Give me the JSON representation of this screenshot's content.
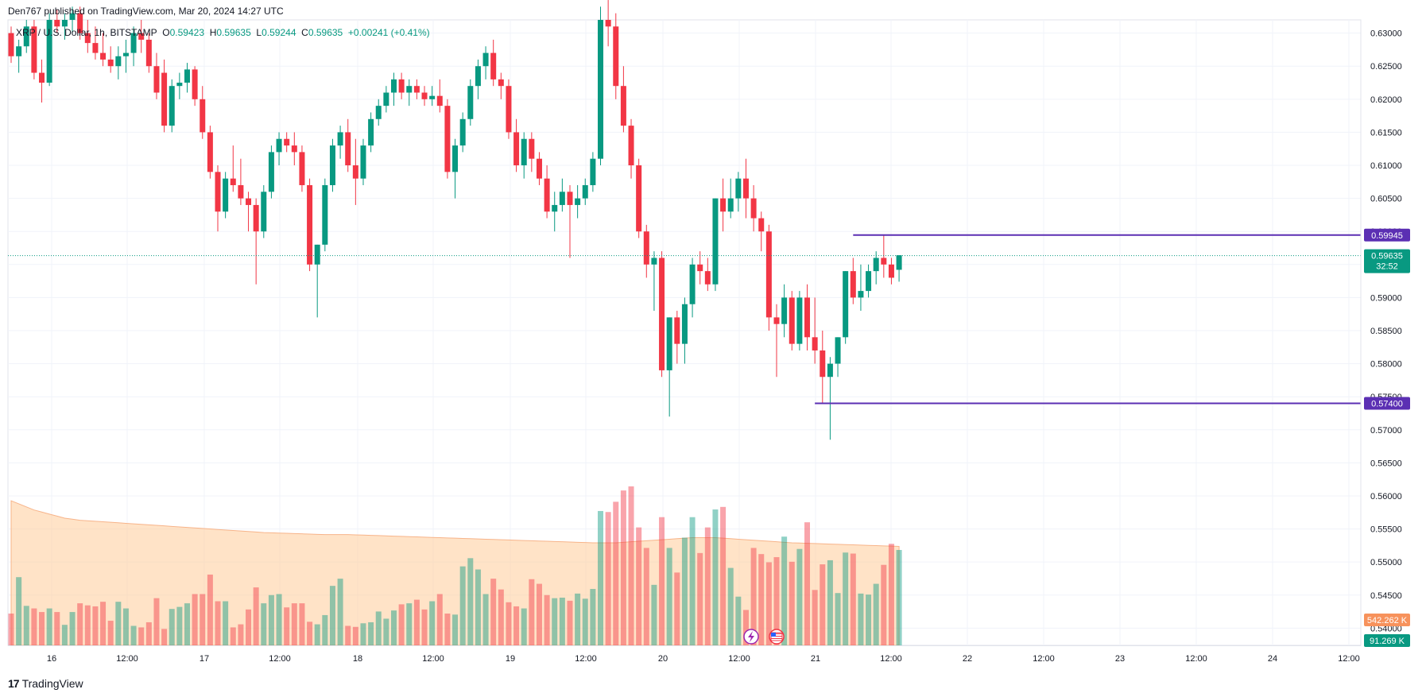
{
  "header": {
    "published": "Den767 published on TradingView.com, Mar 20, 2024 14:27 UTC"
  },
  "symbol": {
    "name": "XRP / U.S. Dollar, 1h, BITSTAMP",
    "open_label": "O",
    "open": "0.59423",
    "high_label": "H",
    "high": "0.59635",
    "low_label": "L",
    "low": "0.59244",
    "close_label": "C",
    "close": "0.59635",
    "change": "+0.00241 (+0.41%)"
  },
  "footer": {
    "brand": "TradingView"
  },
  "colors": {
    "up": "#089981",
    "down": "#f23645",
    "line": "#5b2fb3",
    "volume_ma": "#ffcc99",
    "badge_vol": "#f7925c"
  },
  "chart_data": {
    "type": "candlestick",
    "y_axis": {
      "ticks": [
        "0.63000",
        "0.62500",
        "0.62000",
        "0.61500",
        "0.61000",
        "0.60500",
        "0.60000",
        "0.59500",
        "0.59000",
        "0.58500",
        "0.58000",
        "0.57500",
        "0.57000",
        "0.56500",
        "0.56000",
        "0.55500",
        "0.55000",
        "0.54500",
        "0.54000"
      ],
      "range": [
        0.5374,
        0.632
      ]
    },
    "x_axis": {
      "ticks": [
        "16",
        "12:00",
        "17",
        "12:00",
        "18",
        "12:00",
        "19",
        "12:00",
        "20",
        "12:00",
        "21",
        "12:00",
        "22",
        "12:00",
        "23",
        "12:00",
        "24",
        "12:00"
      ],
      "bar_interval": "1h",
      "visible_bars": 117
    },
    "horizontal_lines": [
      {
        "value": 0.59945,
        "label": "0.59945"
      },
      {
        "value": 0.574,
        "label": "0.57400"
      }
    ],
    "last_price": {
      "value": 0.59635,
      "label": "0.59635",
      "countdown": "32:52"
    },
    "volume": {
      "ma_label": "542.262 K",
      "last_label": "91.269 K"
    },
    "candles": [
      [
        0.63,
        0.631,
        0.6255,
        0.6265
      ],
      [
        0.6265,
        0.629,
        0.624,
        0.628
      ],
      [
        0.628,
        0.632,
        0.627,
        0.631
      ],
      [
        0.631,
        0.632,
        0.623,
        0.624
      ],
      [
        0.624,
        0.626,
        0.6195,
        0.6225
      ],
      [
        0.6225,
        0.633,
        0.622,
        0.632
      ],
      [
        0.632,
        0.6335,
        0.63,
        0.631
      ],
      [
        0.631,
        0.633,
        0.629,
        0.632
      ],
      [
        0.632,
        0.634,
        0.63,
        0.633
      ],
      [
        0.633,
        0.634,
        0.629,
        0.63
      ],
      [
        0.63,
        0.632,
        0.627,
        0.6285
      ],
      [
        0.6285,
        0.631,
        0.626,
        0.627
      ],
      [
        0.627,
        0.63,
        0.625,
        0.626
      ],
      [
        0.626,
        0.628,
        0.624,
        0.625
      ],
      [
        0.625,
        0.628,
        0.623,
        0.6265
      ],
      [
        0.6265,
        0.629,
        0.624,
        0.627
      ],
      [
        0.627,
        0.631,
        0.625,
        0.63
      ],
      [
        0.63,
        0.632,
        0.627,
        0.629
      ],
      [
        0.629,
        0.63,
        0.624,
        0.625
      ],
      [
        0.625,
        0.627,
        0.62,
        0.621
      ],
      [
        0.624,
        0.626,
        0.615,
        0.616
      ],
      [
        0.616,
        0.623,
        0.615,
        0.622
      ],
      [
        0.622,
        0.624,
        0.62,
        0.6225
      ],
      [
        0.6225,
        0.6255,
        0.621,
        0.6245
      ],
      [
        0.6245,
        0.625,
        0.619,
        0.62
      ],
      [
        0.62,
        0.622,
        0.614,
        0.615
      ],
      [
        0.615,
        0.616,
        0.608,
        0.609
      ],
      [
        0.609,
        0.61,
        0.6,
        0.603
      ],
      [
        0.603,
        0.609,
        0.602,
        0.608
      ],
      [
        0.608,
        0.613,
        0.606,
        0.607
      ],
      [
        0.607,
        0.611,
        0.604,
        0.605
      ],
      [
        0.605,
        0.606,
        0.6,
        0.604
      ],
      [
        0.604,
        0.605,
        0.592,
        0.6
      ],
      [
        0.6,
        0.607,
        0.599,
        0.606
      ],
      [
        0.606,
        0.613,
        0.605,
        0.612
      ],
      [
        0.612,
        0.615,
        0.61,
        0.614
      ],
      [
        0.614,
        0.615,
        0.612,
        0.613
      ],
      [
        0.613,
        0.615,
        0.61,
        0.612
      ],
      [
        0.612,
        0.613,
        0.606,
        0.607
      ],
      [
        0.607,
        0.608,
        0.594,
        0.595
      ],
      [
        0.595,
        0.598,
        0.587,
        0.598
      ],
      [
        0.598,
        0.608,
        0.597,
        0.607
      ],
      [
        0.607,
        0.614,
        0.606,
        0.613
      ],
      [
        0.613,
        0.616,
        0.611,
        0.615
      ],
      [
        0.615,
        0.617,
        0.609,
        0.61
      ],
      [
        0.61,
        0.614,
        0.604,
        0.608
      ],
      [
        0.608,
        0.614,
        0.607,
        0.613
      ],
      [
        0.613,
        0.618,
        0.612,
        0.617
      ],
      [
        0.617,
        0.62,
        0.616,
        0.619
      ],
      [
        0.619,
        0.622,
        0.618,
        0.621
      ],
      [
        0.621,
        0.624,
        0.619,
        0.623
      ],
      [
        0.623,
        0.624,
        0.62,
        0.621
      ],
      [
        0.621,
        0.623,
        0.619,
        0.622
      ],
      [
        0.622,
        0.623,
        0.62,
        0.621
      ],
      [
        0.621,
        0.622,
        0.619,
        0.62
      ],
      [
        0.62,
        0.622,
        0.619,
        0.6205
      ],
      [
        0.6205,
        0.623,
        0.618,
        0.619
      ],
      [
        0.619,
        0.62,
        0.608,
        0.609
      ],
      [
        0.609,
        0.614,
        0.605,
        0.613
      ],
      [
        0.613,
        0.618,
        0.612,
        0.617
      ],
      [
        0.617,
        0.623,
        0.616,
        0.622
      ],
      [
        0.622,
        0.626,
        0.62,
        0.625
      ],
      [
        0.625,
        0.628,
        0.623,
        0.627
      ],
      [
        0.627,
        0.629,
        0.622,
        0.623
      ],
      [
        0.623,
        0.624,
        0.62,
        0.622
      ],
      [
        0.622,
        0.623,
        0.614,
        0.615
      ],
      [
        0.615,
        0.617,
        0.609,
        0.61
      ],
      [
        0.61,
        0.615,
        0.608,
        0.614
      ],
      [
        0.614,
        0.615,
        0.609,
        0.611
      ],
      [
        0.611,
        0.612,
        0.607,
        0.608
      ],
      [
        0.608,
        0.61,
        0.602,
        0.603
      ],
      [
        0.603,
        0.606,
        0.6,
        0.604
      ],
      [
        0.604,
        0.608,
        0.603,
        0.606
      ],
      [
        0.606,
        0.607,
        0.596,
        0.604
      ],
      [
        0.604,
        0.607,
        0.602,
        0.605
      ],
      [
        0.605,
        0.608,
        0.604,
        0.607
      ],
      [
        0.607,
        0.612,
        0.606,
        0.611
      ],
      [
        0.611,
        0.634,
        0.61,
        0.632
      ],
      [
        0.632,
        0.635,
        0.628,
        0.631
      ],
      [
        0.631,
        0.633,
        0.62,
        0.622
      ],
      [
        0.622,
        0.625,
        0.615,
        0.616
      ],
      [
        0.616,
        0.617,
        0.608,
        0.61
      ],
      [
        0.61,
        0.611,
        0.599,
        0.6
      ],
      [
        0.6,
        0.601,
        0.593,
        0.595
      ],
      [
        0.595,
        0.597,
        0.588,
        0.596
      ],
      [
        0.596,
        0.597,
        0.578,
        0.579
      ],
      [
        0.579,
        0.587,
        0.572,
        0.587
      ],
      [
        0.587,
        0.588,
        0.58,
        0.583
      ],
      [
        0.583,
        0.59,
        0.58,
        0.589
      ],
      [
        0.589,
        0.596,
        0.587,
        0.595
      ],
      [
        0.595,
        0.597,
        0.592,
        0.594
      ],
      [
        0.594,
        0.596,
        0.591,
        0.592
      ],
      [
        0.592,
        0.605,
        0.591,
        0.605
      ],
      [
        0.605,
        0.608,
        0.6,
        0.603
      ],
      [
        0.603,
        0.608,
        0.602,
        0.605
      ],
      [
        0.605,
        0.609,
        0.603,
        0.608
      ],
      [
        0.608,
        0.611,
        0.602,
        0.605
      ],
      [
        0.605,
        0.607,
        0.6,
        0.602
      ],
      [
        0.602,
        0.603,
        0.597,
        0.6
      ],
      [
        0.6,
        0.601,
        0.585,
        0.587
      ],
      [
        0.587,
        0.589,
        0.578,
        0.586
      ],
      [
        0.586,
        0.592,
        0.584,
        0.59
      ],
      [
        0.59,
        0.591,
        0.582,
        0.583
      ],
      [
        0.583,
        0.591,
        0.582,
        0.59
      ],
      [
        0.59,
        0.592,
        0.582,
        0.584
      ],
      [
        0.584,
        0.59,
        0.58,
        0.582
      ],
      [
        0.582,
        0.585,
        0.574,
        0.578
      ],
      [
        0.578,
        0.581,
        0.5685,
        0.58
      ],
      [
        0.58,
        0.584,
        0.578,
        0.584
      ],
      [
        0.584,
        0.594,
        0.583,
        0.594
      ],
      [
        0.594,
        0.596,
        0.589,
        0.59
      ],
      [
        0.59,
        0.595,
        0.588,
        0.591
      ],
      [
        0.591,
        0.595,
        0.59,
        0.594
      ],
      [
        0.594,
        0.597,
        0.592,
        0.596
      ],
      [
        0.596,
        0.5995,
        0.593,
        0.595
      ],
      [
        0.595,
        0.596,
        0.592,
        0.593
      ],
      [
        0.5942,
        0.5964,
        0.5924,
        0.5964
      ]
    ],
    "volumes": [
      620,
      1330,
      770,
      720,
      650,
      720,
      650,
      400,
      650,
      820,
      780,
      760,
      850,
      480,
      850,
      720,
      380,
      350,
      450,
      920,
      320,
      710,
      750,
      820,
      1000,
      1000,
      1380,
      860,
      860,
      350,
      410,
      700,
      1130,
      820,
      980,
      1000,
      740,
      820,
      820,
      460,
      410,
      590,
      1160,
      1300,
      380,
      360,
      430,
      450,
      660,
      520,
      680,
      800,
      820,
      890,
      700,
      860,
      1000,
      620,
      600,
      1540,
      1700,
      1480,
      1000,
      1300,
      1090,
      840,
      760,
      720,
      1290,
      1200,
      980,
      920,
      930,
      870,
      1010,
      910,
      1100,
      2620,
      2600,
      2800,
      3020,
      3100,
      2300,
      1900,
      1180,
      2500,
      1900,
      1420,
      2100,
      2500,
      1800,
      2300,
      2650,
      2700,
      1510,
      950,
      690,
      1900,
      1780,
      1620,
      1720,
      2120,
      1630,
      1880,
      2400,
      1080,
      1580,
      1660,
      1020,
      1810,
      1790,
      1010,
      990,
      1200,
      1570,
      1980,
      1860
    ],
    "volume_ma": [
      2820,
      2760,
      2700,
      2640,
      2600,
      2560,
      2520,
      2480,
      2460,
      2440,
      2430,
      2420,
      2410,
      2400,
      2390,
      2380,
      2370,
      2360,
      2350,
      2340,
      2330,
      2320,
      2310,
      2300,
      2290,
      2280,
      2270,
      2260,
      2250,
      2240,
      2230,
      2220,
      2210,
      2200,
      2195,
      2190,
      2185,
      2180,
      2175,
      2170,
      2165,
      2160,
      2160,
      2160,
      2160,
      2155,
      2150,
      2145,
      2140,
      2135,
      2130,
      2125,
      2120,
      2115,
      2110,
      2105,
      2100,
      2095,
      2090,
      2085,
      2080,
      2075,
      2070,
      2065,
      2060,
      2055,
      2050,
      2045,
      2040,
      2035,
      2030,
      2025,
      2020,
      2015,
      2010,
      2005,
      2000,
      2000,
      2000,
      2000,
      2010,
      2020,
      2030,
      2040,
      2050,
      2060,
      2070,
      2080,
      2090,
      2100,
      2100,
      2100,
      2100,
      2090,
      2080,
      2070,
      2060,
      2050,
      2040,
      2030,
      2020,
      2010,
      2000,
      1995,
      1990,
      1985,
      1980,
      1975,
      1970,
      1965,
      1960,
      1955,
      1950,
      1945,
      1940,
      1935,
      1930
    ]
  }
}
